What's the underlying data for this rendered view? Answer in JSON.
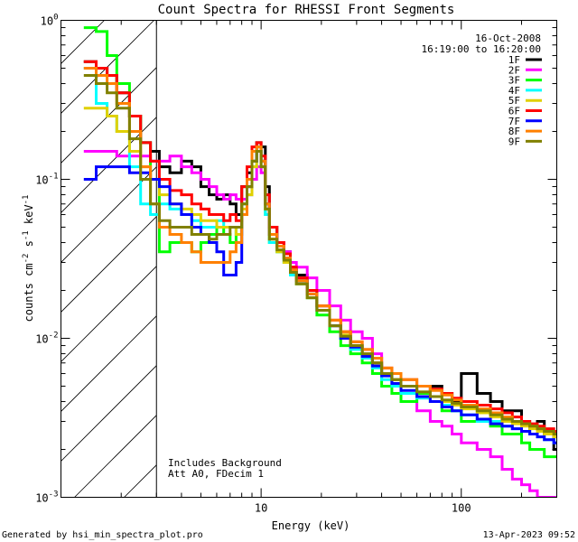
{
  "chart_data": {
    "type": "line",
    "title": "Count Spectra for RHESSI Front Segments",
    "xlabel": "Energy (keV)",
    "ylabel": "counts cm^-2 s^-1 keV^-1",
    "xscale": "log",
    "yscale": "log",
    "xlim": [
      1.0,
      300
    ],
    "ylim": [
      0.001,
      1.0
    ],
    "x_ticks": [
      {
        "value": 10,
        "label": "10"
      },
      {
        "value": 100,
        "label": "100"
      }
    ],
    "y_ticks": [
      {
        "value": 0.001,
        "base": "10",
        "exp": "-3"
      },
      {
        "value": 0.01,
        "base": "10",
        "exp": "-2"
      },
      {
        "value": 0.1,
        "base": "10",
        "exp": "-1"
      },
      {
        "value": 1.0,
        "base": "10",
        "exp": "0"
      }
    ],
    "excluded_region": {
      "from": 1.0,
      "to": 3.0
    },
    "legend": {
      "date": "16-Oct-2008",
      "time_range": "16:19:00 to 16:20:00",
      "placement": "top-right"
    },
    "annotations": [
      "Includes Background",
      "Att A0, FDecim 1"
    ],
    "series": [
      {
        "name": "1F",
        "color": "#000000",
        "x": [
          1.3,
          1.5,
          1.7,
          1.9,
          2.2,
          2.5,
          2.8,
          3.1,
          3.5,
          4.0,
          4.5,
          5.0,
          5.5,
          6.0,
          6.5,
          7.0,
          7.5,
          8.0,
          8.5,
          9.0,
          9.5,
          10.0,
          10.5,
          11.0,
          12,
          13,
          14,
          15,
          17,
          19,
          22,
          25,
          28,
          32,
          36,
          40,
          45,
          50,
          60,
          70,
          80,
          90,
          100,
          120,
          140,
          160,
          180,
          200,
          220,
          240,
          260,
          290
        ],
        "values": [
          0.55,
          0.5,
          0.45,
          0.35,
          0.25,
          0.17,
          0.15,
          0.12,
          0.11,
          0.13,
          0.12,
          0.09,
          0.08,
          0.075,
          0.08,
          0.07,
          0.06,
          0.09,
          0.11,
          0.15,
          0.17,
          0.16,
          0.09,
          0.05,
          0.04,
          0.035,
          0.028,
          0.025,
          0.02,
          0.016,
          0.012,
          0.01,
          0.009,
          0.008,
          0.007,
          0.006,
          0.0055,
          0.005,
          0.0045,
          0.005,
          0.0045,
          0.004,
          0.006,
          0.0045,
          0.004,
          0.0035,
          0.0035,
          0.003,
          0.0025,
          0.003,
          0.0025,
          0.002
        ]
      },
      {
        "name": "2F",
        "color": "#ff00ff",
        "x": [
          1.3,
          1.5,
          1.7,
          1.9,
          2.2,
          2.5,
          2.8,
          3.1,
          3.5,
          4.0,
          4.5,
          5.0,
          5.5,
          6.0,
          6.5,
          7.0,
          7.5,
          8.0,
          8.5,
          9.0,
          9.5,
          10.0,
          10.5,
          11.0,
          12,
          13,
          14,
          15,
          17,
          19,
          22,
          25,
          28,
          32,
          36,
          40,
          45,
          50,
          60,
          70,
          80,
          90,
          100,
          120,
          140,
          160,
          180,
          200,
          220,
          240,
          260,
          290
        ],
        "values": [
          0.15,
          0.15,
          0.15,
          0.14,
          0.14,
          0.14,
          0.13,
          0.13,
          0.14,
          0.12,
          0.11,
          0.1,
          0.09,
          0.08,
          0.075,
          0.08,
          0.075,
          0.075,
          0.08,
          0.1,
          0.12,
          0.11,
          0.07,
          0.045,
          0.04,
          0.035,
          0.03,
          0.028,
          0.024,
          0.02,
          0.016,
          0.013,
          0.011,
          0.01,
          0.008,
          0.006,
          0.005,
          0.004,
          0.0035,
          0.003,
          0.0028,
          0.0025,
          0.0022,
          0.002,
          0.0018,
          0.0015,
          0.0013,
          0.0012,
          0.0011,
          0.001,
          0.001,
          0.001
        ]
      },
      {
        "name": "3F",
        "color": "#00ff00",
        "x": [
          1.3,
          1.5,
          1.7,
          1.9,
          2.2,
          2.5,
          2.8,
          3.1,
          3.5,
          4.0,
          4.5,
          5.0,
          5.5,
          6.0,
          6.5,
          7.0,
          7.5,
          8.0,
          8.5,
          9.0,
          9.5,
          10.0,
          10.5,
          11.0,
          12,
          13,
          14,
          15,
          17,
          19,
          22,
          25,
          28,
          32,
          36,
          40,
          45,
          50,
          60,
          70,
          80,
          90,
          100,
          120,
          140,
          160,
          180,
          200,
          220,
          240,
          260,
          290
        ],
        "values": [
          0.9,
          0.85,
          0.6,
          0.4,
          0.25,
          0.17,
          0.1,
          0.035,
          0.04,
          0.04,
          0.035,
          0.04,
          0.045,
          0.05,
          0.045,
          0.04,
          0.05,
          0.07,
          0.09,
          0.13,
          0.16,
          0.13,
          0.06,
          0.04,
          0.035,
          0.03,
          0.025,
          0.022,
          0.018,
          0.014,
          0.011,
          0.009,
          0.008,
          0.007,
          0.006,
          0.005,
          0.0045,
          0.004,
          0.0045,
          0.004,
          0.0035,
          0.0035,
          0.003,
          0.003,
          0.0028,
          0.0025,
          0.0025,
          0.0022,
          0.002,
          0.002,
          0.0018,
          0.0018
        ]
      },
      {
        "name": "4F",
        "color": "#00ffff",
        "x": [
          1.3,
          1.5,
          1.7,
          1.9,
          2.2,
          2.5,
          2.8,
          3.1,
          3.5,
          4.0,
          4.5,
          5.0,
          5.5,
          6.0,
          6.5,
          7.0,
          7.5,
          8.0,
          8.5,
          9.0,
          9.5,
          10.0,
          10.5,
          11.0,
          12,
          13,
          14,
          15,
          17,
          19,
          22,
          25,
          28,
          32,
          36,
          40,
          45,
          50,
          60,
          70,
          80,
          90,
          100,
          120,
          140,
          160,
          180,
          200,
          220,
          240,
          260,
          290
        ],
        "values": [
          0.5,
          0.3,
          0.25,
          0.2,
          0.12,
          0.07,
          0.06,
          0.07,
          0.065,
          0.06,
          0.055,
          0.05,
          0.05,
          0.055,
          0.05,
          0.05,
          0.045,
          0.07,
          0.08,
          0.12,
          0.16,
          0.12,
          0.06,
          0.04,
          0.035,
          0.03,
          0.025,
          0.022,
          0.018,
          0.015,
          0.012,
          0.01,
          0.0085,
          0.0075,
          0.0065,
          0.0055,
          0.005,
          0.0045,
          0.0042,
          0.004,
          0.0038,
          0.0035,
          0.0033,
          0.003,
          0.003,
          0.0028,
          0.0027,
          0.0026,
          0.0025,
          0.0024,
          0.0023,
          0.0022
        ]
      },
      {
        "name": "5F",
        "color": "#e0d000",
        "x": [
          1.3,
          1.5,
          1.7,
          1.9,
          2.2,
          2.5,
          2.8,
          3.1,
          3.5,
          4.0,
          4.5,
          5.0,
          5.5,
          6.0,
          6.5,
          7.0,
          7.5,
          8.0,
          8.5,
          9.0,
          9.5,
          10.0,
          10.5,
          11.0,
          12,
          13,
          14,
          15,
          17,
          19,
          22,
          25,
          28,
          32,
          36,
          40,
          45,
          50,
          60,
          70,
          80,
          90,
          100,
          120,
          140,
          160,
          180,
          200,
          220,
          240,
          260,
          290
        ],
        "values": [
          0.28,
          0.28,
          0.25,
          0.2,
          0.15,
          0.12,
          0.1,
          0.08,
          0.07,
          0.065,
          0.06,
          0.055,
          0.055,
          0.05,
          0.05,
          0.05,
          0.045,
          0.065,
          0.08,
          0.12,
          0.15,
          0.12,
          0.065,
          0.042,
          0.035,
          0.03,
          0.026,
          0.022,
          0.018,
          0.015,
          0.012,
          0.0105,
          0.009,
          0.008,
          0.007,
          0.006,
          0.0055,
          0.005,
          0.0046,
          0.0043,
          0.004,
          0.0038,
          0.0036,
          0.0034,
          0.0032,
          0.003,
          0.0029,
          0.0028,
          0.0027,
          0.0026,
          0.0025,
          0.0024
        ]
      },
      {
        "name": "6F",
        "color": "#ff0000",
        "x": [
          1.3,
          1.5,
          1.7,
          1.9,
          2.2,
          2.5,
          2.8,
          3.1,
          3.5,
          4.0,
          4.5,
          5.0,
          5.5,
          6.0,
          6.5,
          7.0,
          7.5,
          8.0,
          8.5,
          9.0,
          9.5,
          10.0,
          10.5,
          11.0,
          12,
          13,
          14,
          15,
          17,
          19,
          22,
          25,
          28,
          32,
          36,
          40,
          45,
          50,
          60,
          70,
          80,
          90,
          100,
          120,
          140,
          160,
          180,
          200,
          220,
          240,
          260,
          290
        ],
        "values": [
          0.55,
          0.5,
          0.45,
          0.35,
          0.25,
          0.17,
          0.13,
          0.1,
          0.085,
          0.08,
          0.07,
          0.065,
          0.06,
          0.06,
          0.055,
          0.06,
          0.055,
          0.09,
          0.12,
          0.16,
          0.17,
          0.14,
          0.08,
          0.05,
          0.04,
          0.034,
          0.028,
          0.024,
          0.02,
          0.016,
          0.013,
          0.011,
          0.0095,
          0.0085,
          0.0075,
          0.0065,
          0.006,
          0.0055,
          0.005,
          0.0048,
          0.0045,
          0.0042,
          0.004,
          0.0038,
          0.0036,
          0.0034,
          0.0032,
          0.003,
          0.0029,
          0.0028,
          0.0027,
          0.0026
        ]
      },
      {
        "name": "7F",
        "color": "#0000ff",
        "x": [
          1.3,
          1.5,
          1.7,
          1.9,
          2.2,
          2.5,
          2.8,
          3.1,
          3.5,
          4.0,
          4.5,
          5.0,
          5.5,
          6.0,
          6.5,
          7.0,
          7.5,
          8.0,
          8.5,
          9.0,
          9.5,
          10.0,
          10.5,
          11.0,
          12,
          13,
          14,
          15,
          17,
          19,
          22,
          25,
          28,
          32,
          36,
          40,
          45,
          50,
          60,
          70,
          80,
          90,
          100,
          120,
          140,
          160,
          180,
          200,
          220,
          240,
          260,
          290
        ],
        "values": [
          0.1,
          0.12,
          0.12,
          0.12,
          0.11,
          0.11,
          0.1,
          0.09,
          0.07,
          0.06,
          0.05,
          0.045,
          0.04,
          0.035,
          0.025,
          0.025,
          0.03,
          0.06,
          0.09,
          0.13,
          0.15,
          0.13,
          0.07,
          0.045,
          0.038,
          0.032,
          0.027,
          0.023,
          0.019,
          0.015,
          0.012,
          0.01,
          0.0088,
          0.0077,
          0.0067,
          0.0058,
          0.0052,
          0.0047,
          0.0043,
          0.004,
          0.0037,
          0.0035,
          0.0033,
          0.0031,
          0.0029,
          0.0028,
          0.0027,
          0.0026,
          0.0025,
          0.0024,
          0.0023,
          0.0022
        ]
      },
      {
        "name": "8F",
        "color": "#ff8000",
        "x": [
          1.3,
          1.5,
          1.7,
          1.9,
          2.2,
          2.5,
          2.8,
          3.1,
          3.5,
          4.0,
          4.5,
          5.0,
          5.5,
          6.0,
          6.5,
          7.0,
          7.5,
          8.0,
          8.5,
          9.0,
          9.5,
          10.0,
          10.5,
          11.0,
          12,
          13,
          14,
          15,
          17,
          19,
          22,
          25,
          28,
          32,
          36,
          40,
          45,
          50,
          60,
          70,
          80,
          90,
          100,
          120,
          140,
          160,
          180,
          200,
          220,
          240,
          260,
          290
        ],
        "values": [
          0.5,
          0.45,
          0.4,
          0.3,
          0.2,
          0.12,
          0.07,
          0.05,
          0.045,
          0.04,
          0.035,
          0.03,
          0.03,
          0.03,
          0.03,
          0.035,
          0.04,
          0.06,
          0.1,
          0.15,
          0.16,
          0.13,
          0.07,
          0.045,
          0.038,
          0.032,
          0.027,
          0.023,
          0.019,
          0.016,
          0.013,
          0.011,
          0.0095,
          0.0085,
          0.0075,
          0.0065,
          0.006,
          0.0055,
          0.005,
          0.0047,
          0.0044,
          0.0041,
          0.0038,
          0.0036,
          0.0034,
          0.0032,
          0.003,
          0.0029,
          0.0028,
          0.0027,
          0.0026,
          0.0025
        ]
      },
      {
        "name": "9F",
        "color": "#808000",
        "x": [
          1.3,
          1.5,
          1.7,
          1.9,
          2.2,
          2.5,
          2.8,
          3.1,
          3.5,
          4.0,
          4.5,
          5.0,
          5.5,
          6.0,
          6.5,
          7.0,
          7.5,
          8.0,
          8.5,
          9.0,
          9.5,
          10.0,
          10.5,
          11.0,
          12,
          13,
          14,
          15,
          17,
          19,
          22,
          25,
          28,
          32,
          36,
          40,
          45,
          50,
          60,
          70,
          80,
          90,
          100,
          120,
          140,
          160,
          180,
          200,
          220,
          240,
          260,
          290
        ],
        "values": [
          0.45,
          0.4,
          0.35,
          0.28,
          0.18,
          0.1,
          0.07,
          0.055,
          0.05,
          0.05,
          0.045,
          0.045,
          0.042,
          0.045,
          0.045,
          0.05,
          0.05,
          0.07,
          0.09,
          0.13,
          0.15,
          0.12,
          0.065,
          0.042,
          0.036,
          0.031,
          0.026,
          0.022,
          0.018,
          0.015,
          0.012,
          0.0103,
          0.009,
          0.008,
          0.007,
          0.006,
          0.0055,
          0.005,
          0.0046,
          0.0043,
          0.0041,
          0.0039,
          0.0037,
          0.0035,
          0.0033,
          0.0031,
          0.003,
          0.0029,
          0.0028,
          0.0027,
          0.0026,
          0.0025
        ]
      }
    ]
  },
  "footer": {
    "left": "Generated by hsi_min_spectra_plot.pro",
    "right": "13-Apr-2023 09:52"
  }
}
